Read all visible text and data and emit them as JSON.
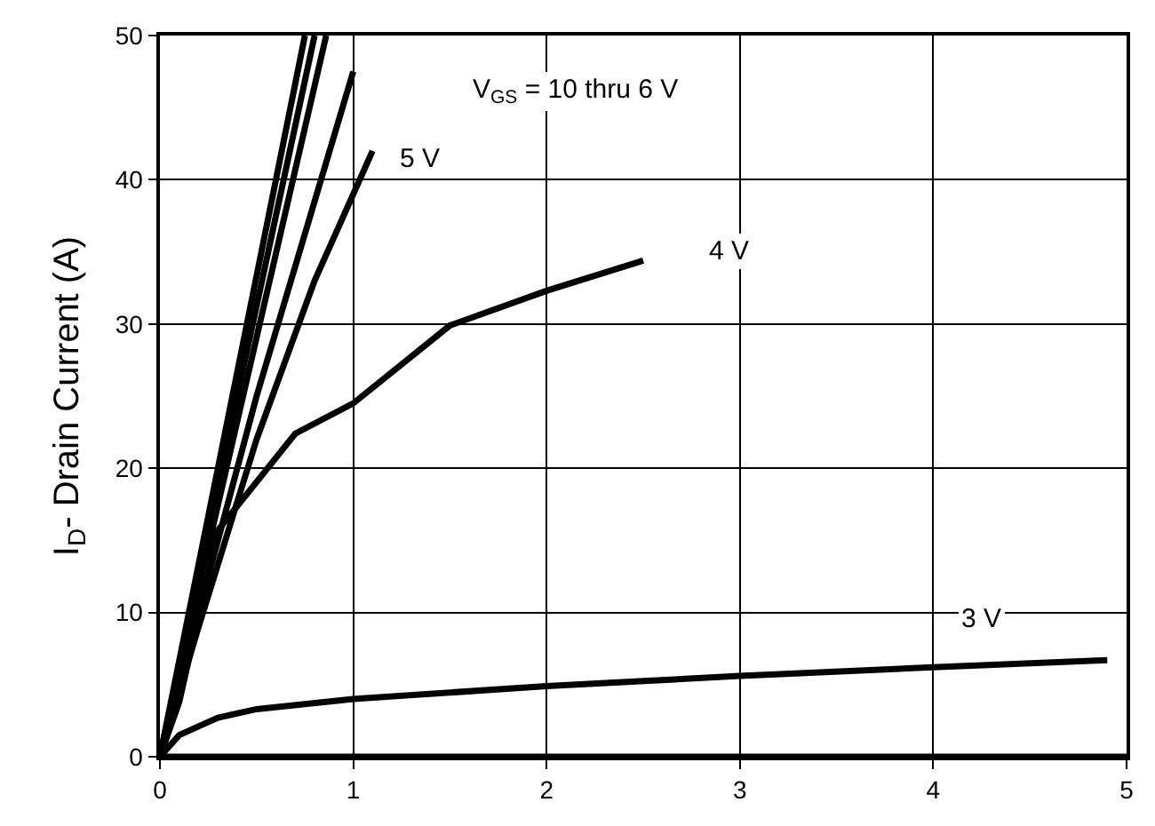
{
  "chart_data": {
    "type": "line",
    "ylabel": "I$_{D}$- Drain Current (A)",
    "xlim": [
      0,
      5
    ],
    "xticks": [
      0,
      1,
      2,
      3,
      4,
      5
    ],
    "ylim": [
      0,
      50
    ],
    "yticks": [
      0,
      10,
      20,
      30,
      40,
      50
    ],
    "grid": true,
    "marker": "none",
    "line_style": "solid",
    "series": [
      {
        "color": "#000000",
        "x": [
          0,
          0.75
        ],
        "values": [
          0,
          50
        ]
      },
      {
        "color": "#000000",
        "x": [
          0,
          0.8
        ],
        "values": [
          0,
          50
        ]
      },
      {
        "color": "#000000",
        "x": [
          0,
          0.86
        ],
        "values": [
          0,
          50
        ]
      },
      {
        "color": "#000000",
        "x": [
          0,
          0.5,
          1.0
        ],
        "values": [
          0,
          25,
          47.5
        ]
      },
      {
        "color": "#000000",
        "x": [
          0,
          0.2,
          0.5,
          0.8,
          1.1
        ],
        "values": [
          0,
          9,
          22,
          33,
          42
        ]
      },
      {
        "color": "#000000",
        "x": [
          0,
          0.1,
          0.3,
          0.7,
          1.0,
          1.5,
          2.0,
          2.5
        ],
        "values": [
          0,
          3.8,
          15.7,
          22.4,
          24.5,
          29.9,
          32.3,
          34.4
        ]
      },
      {
        "color": "#000000",
        "x": [
          0,
          0.1,
          0.3,
          0.5,
          1,
          2,
          3,
          4,
          4.9
        ],
        "values": [
          0,
          1.5,
          2.7,
          3.3,
          4,
          4.9,
          5.6,
          6.2,
          6.7
        ]
      },
      {
        "color": "#000000",
        "x": [
          0,
          5
        ],
        "values": [
          0,
          0
        ]
      }
    ],
    "annotations": [
      "V$_{GS}$ = 10 thru 6 V",
      {
        "text": "5 V",
        "x": 1.35,
        "y": 41.5
      },
      {
        "text": "4 V",
        "x": 2.95,
        "y": 35
      },
      {
        "text": "3 V",
        "x": 4.25,
        "y": 9.5
      }
    ]
  }
}
